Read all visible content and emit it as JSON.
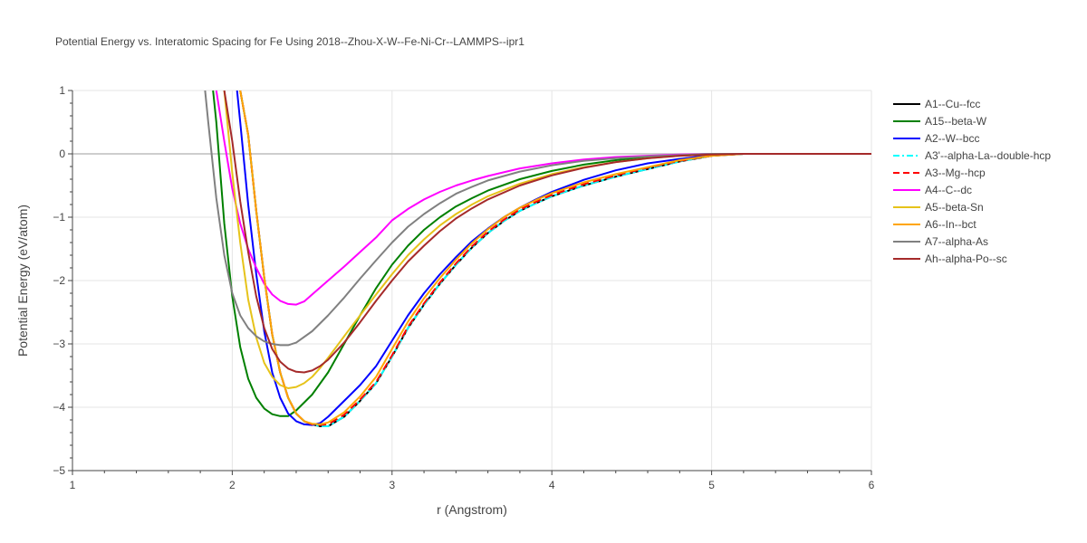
{
  "chart_data": {
    "type": "line",
    "title": "Potential Energy vs. Interatomic Spacing for Fe Using 2018--Zhou-X-W--Fe-Ni-Cr--LAMMPS--ipr1",
    "xlabel": "r (Angstrom)",
    "ylabel": "Potential Energy (eV/atom)",
    "xlim": [
      1,
      6
    ],
    "ylim": [
      -5,
      1
    ],
    "x_ticks": [
      "1",
      "2",
      "3",
      "4",
      "5",
      "6"
    ],
    "y_ticks": [
      "1",
      "0",
      "−1",
      "−2",
      "−3",
      "−4",
      "−5"
    ],
    "grid": true,
    "legend_position": "right",
    "series": [
      {
        "name": "A1--Cu--fcc",
        "color": "#000000",
        "dash": "solid",
        "x": [
          2.05,
          2.1,
          2.15,
          2.2,
          2.25,
          2.3,
          2.35,
          2.4,
          2.45,
          2.5,
          2.55,
          2.6,
          2.7,
          2.8,
          2.9,
          3.0,
          3.1,
          3.2,
          3.3,
          3.4,
          3.5,
          3.6,
          3.7,
          3.8,
          3.9,
          4.0,
          4.2,
          4.4,
          4.6,
          4.8,
          5.0,
          5.2,
          5.4,
          6.0
        ],
        "y": [
          1.0,
          0.3,
          -0.9,
          -1.95,
          -2.85,
          -3.45,
          -3.85,
          -4.1,
          -4.22,
          -4.27,
          -4.3,
          -4.3,
          -4.15,
          -3.9,
          -3.62,
          -3.2,
          -2.75,
          -2.38,
          -2.05,
          -1.75,
          -1.48,
          -1.25,
          -1.06,
          -0.9,
          -0.78,
          -0.67,
          -0.5,
          -0.36,
          -0.24,
          -0.12,
          -0.03,
          0.0,
          0.0,
          0.0
        ]
      },
      {
        "name": "A15--beta-W",
        "color": "#008000",
        "dash": "solid",
        "x": [
          1.88,
          1.9,
          1.95,
          2.0,
          2.05,
          2.1,
          2.15,
          2.2,
          2.25,
          2.3,
          2.35,
          2.4,
          2.5,
          2.6,
          2.7,
          2.8,
          2.9,
          3.0,
          3.1,
          3.2,
          3.3,
          3.4,
          3.5,
          3.6,
          3.8,
          4.0,
          4.2,
          4.4,
          4.6,
          4.8,
          5.0,
          5.2,
          6.0
        ],
        "y": [
          1.0,
          0.5,
          -1.1,
          -2.25,
          -3.05,
          -3.55,
          -3.85,
          -4.02,
          -4.11,
          -4.14,
          -4.14,
          -4.05,
          -3.8,
          -3.45,
          -3.0,
          -2.55,
          -2.12,
          -1.75,
          -1.45,
          -1.2,
          -1.0,
          -0.83,
          -0.7,
          -0.58,
          -0.4,
          -0.27,
          -0.17,
          -0.1,
          -0.05,
          -0.02,
          0.0,
          0.0,
          0.0
        ]
      },
      {
        "name": "A2--W--bcc",
        "color": "#0000ff",
        "dash": "solid",
        "x": [
          2.03,
          2.05,
          2.1,
          2.15,
          2.2,
          2.25,
          2.3,
          2.35,
          2.4,
          2.45,
          2.5,
          2.55,
          2.6,
          2.7,
          2.8,
          2.9,
          3.0,
          3.1,
          3.2,
          3.3,
          3.4,
          3.5,
          3.6,
          3.7,
          3.8,
          3.9,
          4.0,
          4.2,
          4.4,
          4.6,
          4.8,
          4.9,
          5.0,
          5.2,
          6.0
        ],
        "y": [
          1.0,
          0.5,
          -0.8,
          -1.9,
          -2.8,
          -3.45,
          -3.85,
          -4.1,
          -4.22,
          -4.27,
          -4.28,
          -4.25,
          -4.15,
          -3.9,
          -3.65,
          -3.35,
          -2.95,
          -2.55,
          -2.2,
          -1.9,
          -1.63,
          -1.38,
          -1.18,
          -1.0,
          -0.85,
          -0.72,
          -0.6,
          -0.41,
          -0.26,
          -0.15,
          -0.08,
          -0.05,
          -0.02,
          0.0,
          0.0
        ]
      },
      {
        "name": "A3'--alpha-La--double-hcp",
        "color": "#00ffff",
        "dash": "dashdot",
        "x": [
          2.05,
          2.1,
          2.15,
          2.2,
          2.25,
          2.3,
          2.35,
          2.4,
          2.45,
          2.5,
          2.55,
          2.6,
          2.7,
          2.8,
          2.9,
          3.0,
          3.1,
          3.2,
          3.3,
          3.4,
          3.5,
          3.6,
          3.7,
          3.8,
          3.9,
          4.0,
          4.2,
          4.4,
          4.6,
          4.8,
          5.0,
          5.2,
          5.4,
          6.0
        ],
        "y": [
          1.0,
          0.3,
          -0.9,
          -1.95,
          -2.85,
          -3.45,
          -3.85,
          -4.1,
          -4.22,
          -4.27,
          -4.3,
          -4.3,
          -4.15,
          -3.9,
          -3.62,
          -3.2,
          -2.75,
          -2.38,
          -2.05,
          -1.75,
          -1.48,
          -1.25,
          -1.06,
          -0.9,
          -0.78,
          -0.67,
          -0.5,
          -0.36,
          -0.24,
          -0.12,
          -0.03,
          0.0,
          0.0,
          0.0
        ]
      },
      {
        "name": "A3--Mg--hcp",
        "color": "#ff0000",
        "dash": "dash",
        "x": [
          2.05,
          2.1,
          2.15,
          2.2,
          2.25,
          2.3,
          2.35,
          2.4,
          2.45,
          2.5,
          2.55,
          2.6,
          2.7,
          2.8,
          2.9,
          3.0,
          3.1,
          3.2,
          3.3,
          3.4,
          3.5,
          3.6,
          3.7,
          3.8,
          3.9,
          4.0,
          4.2,
          4.4,
          4.6,
          4.8,
          5.0,
          5.2,
          5.4,
          6.0
        ],
        "y": [
          1.0,
          0.3,
          -0.9,
          -1.95,
          -2.85,
          -3.45,
          -3.85,
          -4.1,
          -4.22,
          -4.27,
          -4.28,
          -4.27,
          -4.12,
          -3.88,
          -3.6,
          -3.18,
          -2.73,
          -2.36,
          -2.03,
          -1.73,
          -1.46,
          -1.23,
          -1.04,
          -0.88,
          -0.76,
          -0.65,
          -0.48,
          -0.34,
          -0.22,
          -0.11,
          -0.03,
          0.0,
          0.0,
          0.0
        ]
      },
      {
        "name": "A4--C--dc",
        "color": "#ff00ff",
        "dash": "solid",
        "x": [
          1.9,
          1.95,
          2.0,
          2.05,
          2.1,
          2.15,
          2.2,
          2.25,
          2.3,
          2.35,
          2.4,
          2.45,
          2.5,
          2.6,
          2.7,
          2.8,
          2.9,
          3.0,
          3.1,
          3.2,
          3.3,
          3.4,
          3.5,
          3.6,
          3.8,
          4.0,
          4.2,
          4.4,
          4.6,
          4.8,
          5.0,
          5.2,
          6.0
        ],
        "y": [
          1.0,
          0.2,
          -0.55,
          -1.1,
          -1.5,
          -1.8,
          -2.05,
          -2.22,
          -2.32,
          -2.37,
          -2.38,
          -2.33,
          -2.22,
          -2.0,
          -1.78,
          -1.55,
          -1.32,
          -1.05,
          -0.87,
          -0.72,
          -0.6,
          -0.5,
          -0.42,
          -0.35,
          -0.23,
          -0.15,
          -0.09,
          -0.05,
          -0.03,
          -0.01,
          0.0,
          0.0,
          0.0
        ]
      },
      {
        "name": "A5--beta-Sn",
        "color": "#e6c31a",
        "dash": "solid",
        "x": [
          1.95,
          2.0,
          2.05,
          2.1,
          2.15,
          2.2,
          2.25,
          2.3,
          2.35,
          2.4,
          2.45,
          2.5,
          2.55,
          2.6,
          2.65,
          2.7,
          2.8,
          2.9,
          3.0,
          3.1,
          3.2,
          3.3,
          3.4,
          3.5,
          3.6,
          3.8,
          4.0,
          4.2,
          4.4,
          4.6,
          4.8,
          5.0,
          5.2,
          6.0
        ],
        "y": [
          1.0,
          -0.3,
          -1.4,
          -2.3,
          -2.9,
          -3.3,
          -3.52,
          -3.65,
          -3.7,
          -3.68,
          -3.62,
          -3.52,
          -3.38,
          -3.22,
          -3.05,
          -2.88,
          -2.55,
          -2.22,
          -1.9,
          -1.6,
          -1.35,
          -1.13,
          -0.95,
          -0.8,
          -0.67,
          -0.47,
          -0.32,
          -0.21,
          -0.13,
          -0.07,
          -0.03,
          -0.01,
          0.0,
          0.0
        ]
      },
      {
        "name": "A6--In--bct",
        "color": "#ffa500",
        "dash": "solid",
        "x": [
          2.05,
          2.1,
          2.15,
          2.2,
          2.25,
          2.3,
          2.35,
          2.4,
          2.45,
          2.5,
          2.55,
          2.6,
          2.7,
          2.8,
          2.9,
          3.0,
          3.1,
          3.2,
          3.3,
          3.4,
          3.5,
          3.6,
          3.7,
          3.8,
          3.9,
          4.0,
          4.2,
          4.4,
          4.6,
          4.8,
          5.0,
          5.2,
          5.4,
          6.0
        ],
        "y": [
          1.0,
          0.3,
          -0.9,
          -1.95,
          -2.85,
          -3.45,
          -3.85,
          -4.1,
          -4.22,
          -4.26,
          -4.27,
          -4.24,
          -4.08,
          -3.83,
          -3.52,
          -3.08,
          -2.65,
          -2.28,
          -1.96,
          -1.67,
          -1.41,
          -1.19,
          -1.0,
          -0.85,
          -0.73,
          -0.62,
          -0.45,
          -0.32,
          -0.21,
          -0.1,
          -0.03,
          0.0,
          0.0,
          0.0
        ]
      },
      {
        "name": "A7--alpha-As",
        "color": "#808080",
        "dash": "solid",
        "x": [
          1.83,
          1.85,
          1.9,
          1.95,
          2.0,
          2.05,
          2.1,
          2.15,
          2.2,
          2.25,
          2.3,
          2.35,
          2.4,
          2.5,
          2.6,
          2.7,
          2.8,
          2.9,
          3.0,
          3.1,
          3.2,
          3.3,
          3.4,
          3.5,
          3.6,
          3.8,
          4.0,
          4.2,
          4.4,
          4.6,
          4.8,
          5.0,
          5.2,
          6.0
        ],
        "y": [
          1.0,
          0.5,
          -0.7,
          -1.6,
          -2.2,
          -2.55,
          -2.75,
          -2.88,
          -2.96,
          -3.0,
          -3.02,
          -3.02,
          -2.98,
          -2.8,
          -2.55,
          -2.27,
          -1.97,
          -1.68,
          -1.4,
          -1.15,
          -0.95,
          -0.78,
          -0.63,
          -0.52,
          -0.42,
          -0.28,
          -0.18,
          -0.11,
          -0.07,
          -0.04,
          -0.02,
          0.0,
          0.0,
          0.0
        ]
      },
      {
        "name": "Ah--alpha-Po--sc",
        "color": "#a52a2a",
        "dash": "solid",
        "x": [
          1.95,
          2.0,
          2.05,
          2.1,
          2.15,
          2.2,
          2.25,
          2.3,
          2.35,
          2.4,
          2.45,
          2.5,
          2.55,
          2.6,
          2.7,
          2.8,
          2.9,
          3.0,
          3.1,
          3.2,
          3.3,
          3.4,
          3.5,
          3.6,
          3.8,
          4.0,
          4.2,
          4.4,
          4.6,
          4.8,
          5.0,
          5.2,
          6.0
        ],
        "y": [
          1.0,
          0.2,
          -0.75,
          -1.55,
          -2.25,
          -2.75,
          -3.08,
          -3.28,
          -3.39,
          -3.44,
          -3.45,
          -3.42,
          -3.35,
          -3.25,
          -2.98,
          -2.66,
          -2.32,
          -2.0,
          -1.7,
          -1.45,
          -1.22,
          -1.02,
          -0.86,
          -0.72,
          -0.5,
          -0.34,
          -0.22,
          -0.13,
          -0.07,
          -0.03,
          -0.01,
          0.0,
          0.0
        ]
      }
    ]
  }
}
